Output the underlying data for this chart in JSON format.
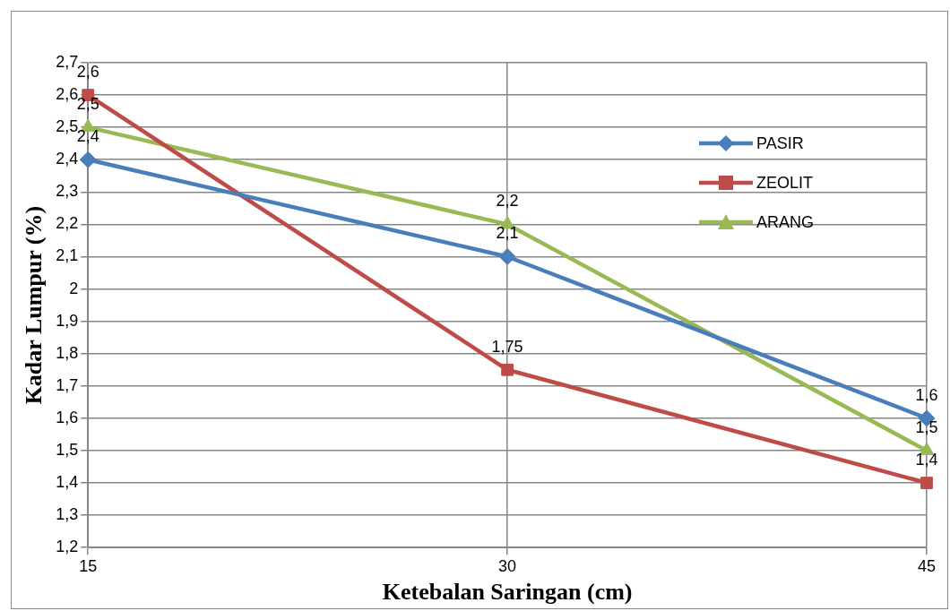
{
  "chart_data": {
    "type": "line",
    "xlabel": "Ketebalan Saringan (cm)",
    "ylabel": "Kadar Lumpur (%)",
    "categories": [
      "15",
      "30",
      "45"
    ],
    "series": [
      {
        "name": "PASIR",
        "color": "#4a7ebb",
        "marker": "diamond",
        "values": [
          2.4,
          2.1,
          1.6
        ],
        "value_labels": [
          "2,4",
          "2,1",
          "1,6"
        ]
      },
      {
        "name": "ZEOLIT",
        "color": "#be4b48",
        "marker": "square",
        "values": [
          2.6,
          1.75,
          1.4
        ],
        "value_labels": [
          "2,6",
          "1,75",
          "1,4"
        ]
      },
      {
        "name": "ARANG",
        "color": "#98b954",
        "marker": "triangle",
        "values": [
          2.5,
          2.2,
          1.5
        ],
        "value_labels": [
          "2,5",
          "2,2",
          "1,5"
        ]
      }
    ],
    "ylim": [
      1.2,
      2.7
    ],
    "yticks": [
      {
        "value": 1.2,
        "label": "1,2"
      },
      {
        "value": 1.3,
        "label": "1,3"
      },
      {
        "value": 1.4,
        "label": "1,4"
      },
      {
        "value": 1.5,
        "label": "1,5"
      },
      {
        "value": 1.6,
        "label": "1,6"
      },
      {
        "value": 1.7,
        "label": "1,7"
      },
      {
        "value": 1.8,
        "label": "1,8"
      },
      {
        "value": 1.9,
        "label": "1,9"
      },
      {
        "value": 2,
        "label": "2"
      },
      {
        "value": 2.1,
        "label": "2,1"
      },
      {
        "value": 2.2,
        "label": "2,2"
      },
      {
        "value": 2.3,
        "label": "2,3"
      },
      {
        "value": 2.4,
        "label": "2,4"
      },
      {
        "value": 2.5,
        "label": "2,5"
      },
      {
        "value": 2.6,
        "label": "2,6"
      },
      {
        "value": 2.7,
        "label": "2,7"
      }
    ],
    "grid": true,
    "legend": "top right"
  }
}
